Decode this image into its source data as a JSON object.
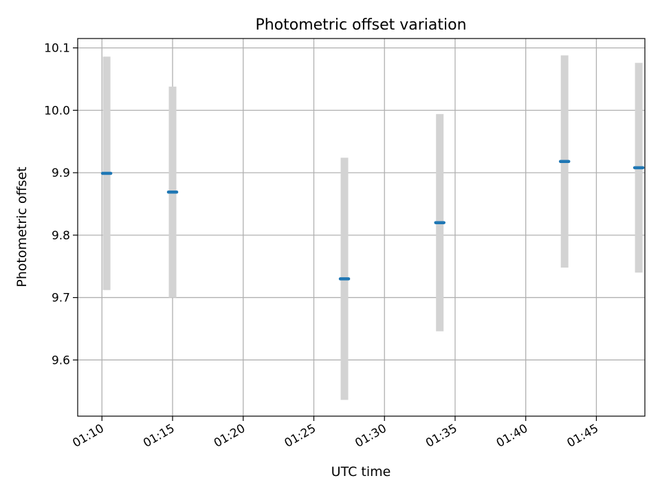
{
  "chart_data": {
    "type": "scatter",
    "title": "Photometric offset variation",
    "xlabel": "UTC time",
    "ylabel": "Photometric offset",
    "x_ticks": [
      "01:10",
      "01:15",
      "01:20",
      "01:25",
      "01:30",
      "01:35",
      "01:40",
      "01:45"
    ],
    "y_ticks": [
      "9.6",
      "9.7",
      "9.8",
      "9.9",
      "10.0",
      "10.1"
    ],
    "xlim": [
      "01:08:17",
      "01:48:26"
    ],
    "ylim": [
      9.51,
      10.115
    ],
    "grid": true,
    "colors": {
      "point": "#1f77b4",
      "errorbar": "#d3d3d3",
      "grid": "#b0b0b0"
    },
    "points": [
      {
        "x": "01:10:20",
        "y": 9.899,
        "yerr": 0.187
      },
      {
        "x": "01:15:00",
        "y": 9.869,
        "yerr": 0.169
      },
      {
        "x": "01:27:10",
        "y": 9.73,
        "yerr": 0.194
      },
      {
        "x": "01:33:55",
        "y": 9.82,
        "yerr": 0.174
      },
      {
        "x": "01:42:45",
        "y": 9.918,
        "yerr": 0.17
      },
      {
        "x": "01:48:00",
        "y": 9.908,
        "yerr": 0.168
      }
    ]
  }
}
